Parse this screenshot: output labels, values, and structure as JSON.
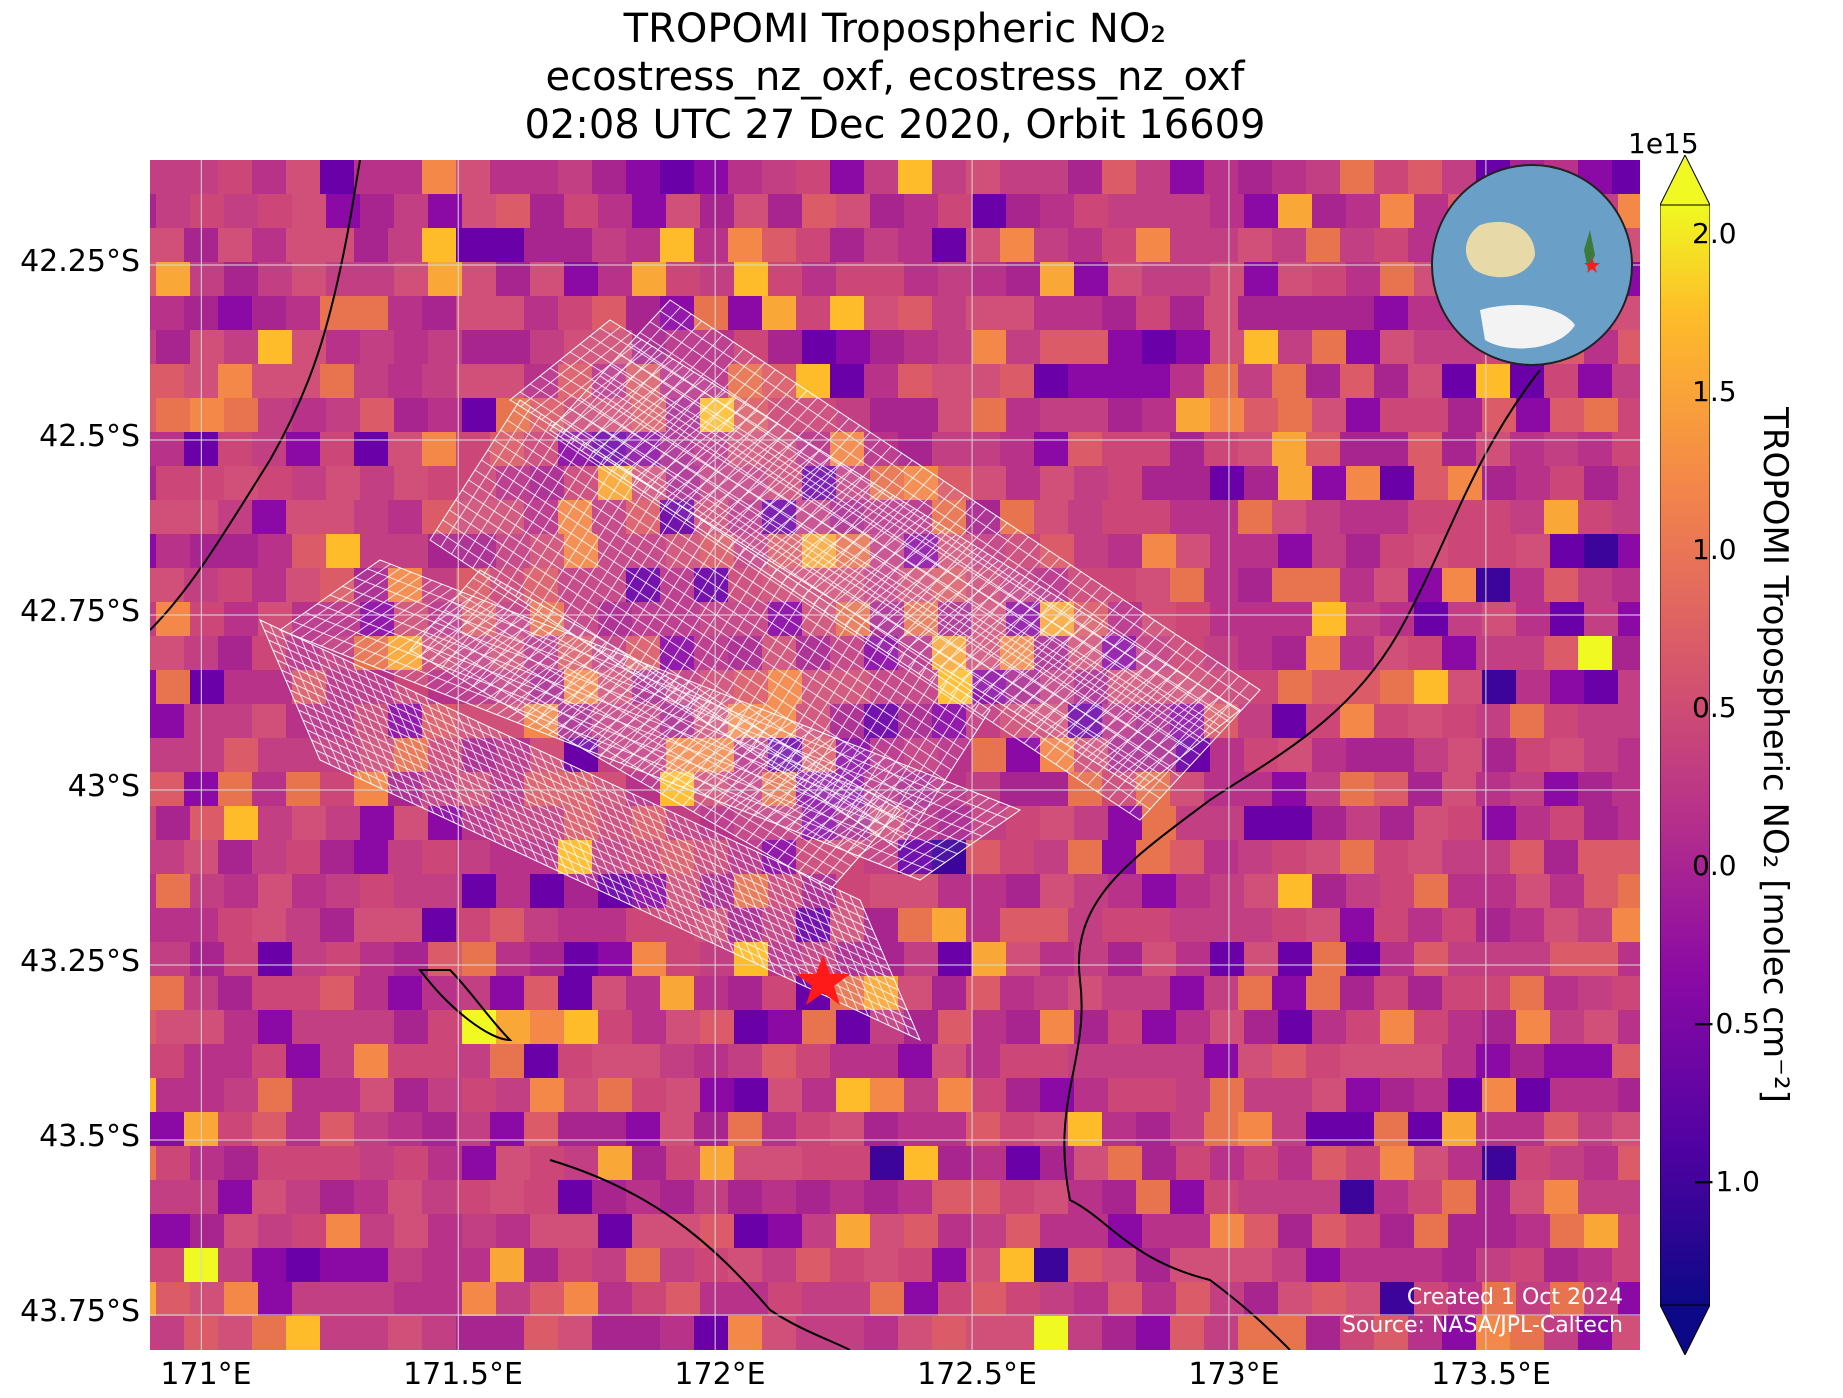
{
  "title": {
    "line1": "TROPOMI Tropospheric NO₂",
    "line2": "ecostress_nz_oxf, ecostress_nz_oxf",
    "line3": "02:08 UTC 27 Dec 2020, Orbit 16609"
  },
  "map": {
    "lon_range": [
      170.9,
      173.8
    ],
    "lat_range": [
      -43.8,
      -42.1
    ],
    "lat_ticks": [
      "42.25°S",
      "42.5°S",
      "42.75°S",
      "43°S",
      "43.25°S",
      "43.5°S",
      "43.75°S"
    ],
    "lon_ticks": [
      "171°E",
      "171.5°E",
      "172°E",
      "172.5°E",
      "173°E",
      "173.5°E"
    ],
    "gridlines": true,
    "target_marker": {
      "symbol": "red-star",
      "lon": 172.21,
      "lat": -43.26,
      "color": "#ff1a1a"
    },
    "inset_globe": {
      "description": "orthographic globe",
      "marker_color": "#ff1a1a",
      "position": "top-right"
    },
    "footprint_color": "#ffffff"
  },
  "colorbar": {
    "label": "TROPOMI Tropospheric NO₂ [molec cm⁻²]",
    "exponent": "1e15",
    "ticks": [
      "2.0",
      "1.5",
      "1.0",
      "0.5",
      "0.0",
      "−0.5",
      "−1.0"
    ],
    "range": [
      -1.5,
      2.1
    ],
    "colormap": "plasma",
    "extend": "both"
  },
  "credit": {
    "created": "Created 1 Oct 2024",
    "source": "Source: NASA/JPL-Caltech"
  }
}
